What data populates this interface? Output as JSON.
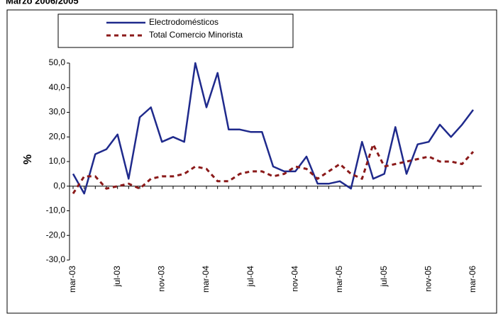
{
  "chart_data": {
    "type": "line",
    "title": "Marzo 2006/2005",
    "y_label": "%",
    "categories": [
      "mar-03",
      null,
      null,
      null,
      "jul-03",
      null,
      null,
      null,
      "nov-03",
      null,
      null,
      null,
      "mar-04",
      null,
      null,
      null,
      "jul-04",
      null,
      null,
      null,
      "nov-04",
      null,
      null,
      null,
      "mar-05",
      null,
      null,
      null,
      "jul-05",
      null,
      null,
      null,
      "nov-05",
      null,
      null,
      null,
      "mar-06"
    ],
    "series": [
      {
        "name": "Electrodomésticos",
        "color": "#1f2a8c",
        "dash": false,
        "values": [
          5,
          -3,
          13,
          15,
          21,
          3,
          28,
          32,
          18,
          20,
          18,
          50,
          32,
          46,
          23,
          23,
          22,
          22,
          8,
          6,
          6,
          12,
          1,
          1,
          2,
          -1,
          18,
          3,
          5,
          24,
          5,
          17,
          18,
          25,
          20,
          25,
          31
        ]
      },
      {
        "name": "Total Comercio Minorista",
        "color": "#8b1a1a",
        "dash": true,
        "values": [
          -3,
          4,
          4,
          -1,
          0,
          1,
          -1,
          3,
          4,
          4,
          5,
          8,
          7,
          2,
          2,
          5,
          6,
          6,
          4,
          5,
          8,
          7,
          3,
          6,
          9,
          5,
          3,
          17,
          8,
          9,
          10,
          11,
          12,
          10,
          10,
          9,
          14
        ]
      }
    ],
    "ylim": [
      -30,
      50
    ],
    "yticks": [
      {
        "value": -30,
        "label": "-30,0"
      },
      {
        "value": -20,
        "label": "-20,0"
      },
      {
        "value": -10,
        "label": "-10,0"
      },
      {
        "value": 0,
        "label": "0,0"
      },
      {
        "value": 10,
        "label": "10,0"
      },
      {
        "value": 20,
        "label": "20,0"
      },
      {
        "value": 30,
        "label": "30,0"
      },
      {
        "value": 40,
        "label": "40,0"
      },
      {
        "value": 50,
        "label": "50,0"
      }
    ],
    "legend": "top-left",
    "grid": false
  }
}
